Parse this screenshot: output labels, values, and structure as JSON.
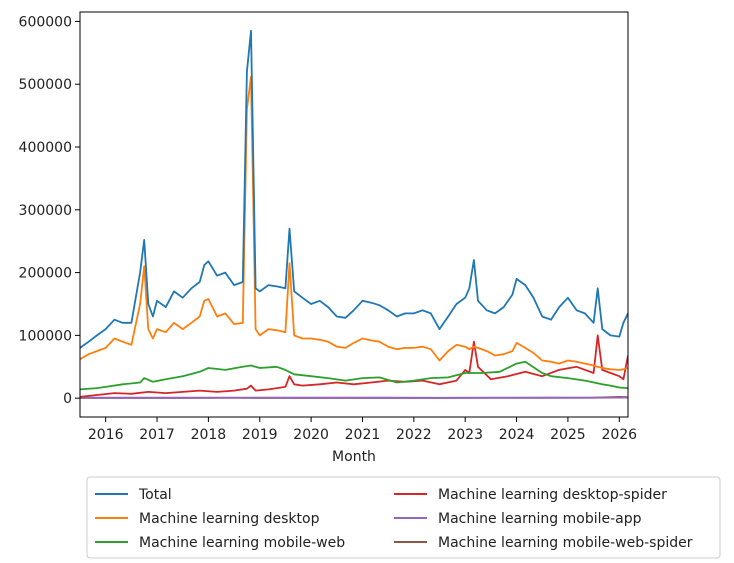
{
  "chart_data": {
    "type": "line",
    "title": "",
    "xlabel": "Month",
    "ylabel": "",
    "xlim": [
      2015.5,
      2026.17
    ],
    "ylim": [
      -30000,
      615000
    ],
    "grid": false,
    "legend_position": "bottom-center",
    "x_ticks": [
      2016,
      2017,
      2018,
      2019,
      2020,
      2021,
      2022,
      2023,
      2024,
      2025,
      2026
    ],
    "x_tick_labels": [
      "2016",
      "2017",
      "2018",
      "2019",
      "2020",
      "2021",
      "2022",
      "2023",
      "2024",
      "2025",
      "2026"
    ],
    "y_ticks": [
      0,
      100000,
      200000,
      300000,
      400000,
      500000,
      600000
    ],
    "y_tick_labels": [
      "0",
      "100000",
      "200000",
      "300000",
      "400000",
      "500000",
      "600000"
    ],
    "series": [
      {
        "name": "Total",
        "color": "#1f77b4",
        "points": [
          [
            2015.5,
            80000
          ],
          [
            2015.67,
            90000
          ],
          [
            2015.83,
            100000
          ],
          [
            2016.0,
            110000
          ],
          [
            2016.17,
            125000
          ],
          [
            2016.33,
            120000
          ],
          [
            2016.5,
            120000
          ],
          [
            2016.67,
            200000
          ],
          [
            2016.75,
            252000
          ],
          [
            2016.83,
            150000
          ],
          [
            2016.92,
            130000
          ],
          [
            2017.0,
            155000
          ],
          [
            2017.17,
            145000
          ],
          [
            2017.33,
            170000
          ],
          [
            2017.5,
            160000
          ],
          [
            2017.67,
            175000
          ],
          [
            2017.83,
            185000
          ],
          [
            2017.92,
            212000
          ],
          [
            2018.0,
            218000
          ],
          [
            2018.17,
            195000
          ],
          [
            2018.33,
            200000
          ],
          [
            2018.5,
            180000
          ],
          [
            2018.67,
            185000
          ],
          [
            2018.75,
            520000
          ],
          [
            2018.83,
            585000
          ],
          [
            2018.92,
            175000
          ],
          [
            2019.0,
            170000
          ],
          [
            2019.17,
            180000
          ],
          [
            2019.33,
            178000
          ],
          [
            2019.5,
            175000
          ],
          [
            2019.58,
            270000
          ],
          [
            2019.67,
            170000
          ],
          [
            2019.83,
            160000
          ],
          [
            2020.0,
            150000
          ],
          [
            2020.17,
            155000
          ],
          [
            2020.33,
            145000
          ],
          [
            2020.5,
            130000
          ],
          [
            2020.67,
            128000
          ],
          [
            2020.83,
            140000
          ],
          [
            2021.0,
            155000
          ],
          [
            2021.17,
            152000
          ],
          [
            2021.33,
            148000
          ],
          [
            2021.5,
            140000
          ],
          [
            2021.67,
            130000
          ],
          [
            2021.83,
            135000
          ],
          [
            2022.0,
            135000
          ],
          [
            2022.17,
            140000
          ],
          [
            2022.33,
            135000
          ],
          [
            2022.5,
            110000
          ],
          [
            2022.67,
            130000
          ],
          [
            2022.83,
            150000
          ],
          [
            2023.0,
            160000
          ],
          [
            2023.08,
            175000
          ],
          [
            2023.17,
            220000
          ],
          [
            2023.25,
            155000
          ],
          [
            2023.42,
            140000
          ],
          [
            2023.58,
            135000
          ],
          [
            2023.75,
            145000
          ],
          [
            2023.92,
            165000
          ],
          [
            2024.0,
            190000
          ],
          [
            2024.17,
            180000
          ],
          [
            2024.33,
            160000
          ],
          [
            2024.5,
            130000
          ],
          [
            2024.67,
            125000
          ],
          [
            2024.83,
            145000
          ],
          [
            2025.0,
            160000
          ],
          [
            2025.17,
            140000
          ],
          [
            2025.33,
            135000
          ],
          [
            2025.5,
            120000
          ],
          [
            2025.58,
            175000
          ],
          [
            2025.67,
            110000
          ],
          [
            2025.83,
            100000
          ],
          [
            2026.0,
            98000
          ],
          [
            2026.08,
            120000
          ],
          [
            2026.17,
            135000
          ]
        ]
      },
      {
        "name": "Machine learning desktop",
        "color": "#ff7f0e",
        "points": [
          [
            2015.5,
            62000
          ],
          [
            2015.67,
            70000
          ],
          [
            2015.83,
            75000
          ],
          [
            2016.0,
            80000
          ],
          [
            2016.17,
            95000
          ],
          [
            2016.33,
            90000
          ],
          [
            2016.5,
            85000
          ],
          [
            2016.67,
            150000
          ],
          [
            2016.75,
            210000
          ],
          [
            2016.83,
            110000
          ],
          [
            2016.92,
            95000
          ],
          [
            2017.0,
            110000
          ],
          [
            2017.17,
            105000
          ],
          [
            2017.33,
            120000
          ],
          [
            2017.5,
            110000
          ],
          [
            2017.67,
            120000
          ],
          [
            2017.83,
            130000
          ],
          [
            2017.92,
            155000
          ],
          [
            2018.0,
            158000
          ],
          [
            2018.17,
            130000
          ],
          [
            2018.33,
            135000
          ],
          [
            2018.5,
            118000
          ],
          [
            2018.67,
            120000
          ],
          [
            2018.75,
            460000
          ],
          [
            2018.83,
            512000
          ],
          [
            2018.92,
            110000
          ],
          [
            2019.0,
            100000
          ],
          [
            2019.17,
            110000
          ],
          [
            2019.33,
            108000
          ],
          [
            2019.5,
            105000
          ],
          [
            2019.58,
            215000
          ],
          [
            2019.67,
            100000
          ],
          [
            2019.83,
            95000
          ],
          [
            2020.0,
            95000
          ],
          [
            2020.17,
            93000
          ],
          [
            2020.33,
            90000
          ],
          [
            2020.5,
            82000
          ],
          [
            2020.67,
            80000
          ],
          [
            2020.83,
            88000
          ],
          [
            2021.0,
            95000
          ],
          [
            2021.17,
            92000
          ],
          [
            2021.33,
            90000
          ],
          [
            2021.5,
            82000
          ],
          [
            2021.67,
            78000
          ],
          [
            2021.83,
            80000
          ],
          [
            2022.0,
            80000
          ],
          [
            2022.17,
            82000
          ],
          [
            2022.33,
            78000
          ],
          [
            2022.5,
            60000
          ],
          [
            2022.67,
            75000
          ],
          [
            2022.83,
            85000
          ],
          [
            2023.0,
            82000
          ],
          [
            2023.08,
            78000
          ],
          [
            2023.17,
            82000
          ],
          [
            2023.25,
            80000
          ],
          [
            2023.42,
            75000
          ],
          [
            2023.58,
            68000
          ],
          [
            2023.75,
            70000
          ],
          [
            2023.92,
            75000
          ],
          [
            2024.0,
            88000
          ],
          [
            2024.17,
            80000
          ],
          [
            2024.33,
            72000
          ],
          [
            2024.5,
            60000
          ],
          [
            2024.67,
            58000
          ],
          [
            2024.83,
            55000
          ],
          [
            2025.0,
            60000
          ],
          [
            2025.17,
            58000
          ],
          [
            2025.33,
            55000
          ],
          [
            2025.5,
            52000
          ],
          [
            2025.58,
            50000
          ],
          [
            2025.67,
            48000
          ],
          [
            2025.83,
            46000
          ],
          [
            2026.0,
            45000
          ],
          [
            2026.08,
            46000
          ],
          [
            2026.17,
            48000
          ]
        ]
      },
      {
        "name": "Machine learning mobile-web",
        "color": "#2ca02c",
        "points": [
          [
            2015.5,
            14000
          ],
          [
            2015.83,
            16000
          ],
          [
            2016.0,
            18000
          ],
          [
            2016.33,
            22000
          ],
          [
            2016.67,
            25000
          ],
          [
            2016.75,
            32000
          ],
          [
            2016.92,
            26000
          ],
          [
            2017.17,
            30000
          ],
          [
            2017.5,
            35000
          ],
          [
            2017.83,
            42000
          ],
          [
            2018.0,
            48000
          ],
          [
            2018.33,
            45000
          ],
          [
            2018.67,
            50000
          ],
          [
            2018.83,
            52000
          ],
          [
            2019.0,
            48000
          ],
          [
            2019.33,
            50000
          ],
          [
            2019.5,
            45000
          ],
          [
            2019.67,
            38000
          ],
          [
            2020.0,
            35000
          ],
          [
            2020.33,
            32000
          ],
          [
            2020.67,
            28000
          ],
          [
            2021.0,
            32000
          ],
          [
            2021.33,
            33000
          ],
          [
            2021.67,
            25000
          ],
          [
            2022.0,
            28000
          ],
          [
            2022.33,
            32000
          ],
          [
            2022.67,
            33000
          ],
          [
            2023.0,
            40000
          ],
          [
            2023.33,
            40000
          ],
          [
            2023.67,
            42000
          ],
          [
            2024.0,
            55000
          ],
          [
            2024.17,
            58000
          ],
          [
            2024.5,
            40000
          ],
          [
            2024.67,
            35000
          ],
          [
            2025.0,
            32000
          ],
          [
            2025.33,
            28000
          ],
          [
            2025.67,
            22000
          ],
          [
            2025.83,
            20000
          ],
          [
            2026.0,
            17000
          ],
          [
            2026.17,
            16000
          ]
        ]
      },
      {
        "name": "Machine learning desktop-spider",
        "color": "#d62728",
        "points": [
          [
            2015.5,
            2000
          ],
          [
            2015.83,
            5000
          ],
          [
            2016.17,
            8000
          ],
          [
            2016.5,
            7000
          ],
          [
            2016.83,
            10000
          ],
          [
            2017.17,
            8000
          ],
          [
            2017.5,
            10000
          ],
          [
            2017.83,
            12000
          ],
          [
            2018.17,
            10000
          ],
          [
            2018.5,
            12000
          ],
          [
            2018.75,
            15000
          ],
          [
            2018.83,
            20000
          ],
          [
            2018.92,
            12000
          ],
          [
            2019.17,
            14000
          ],
          [
            2019.5,
            18000
          ],
          [
            2019.58,
            35000
          ],
          [
            2019.67,
            22000
          ],
          [
            2019.83,
            20000
          ],
          [
            2020.17,
            22000
          ],
          [
            2020.5,
            25000
          ],
          [
            2020.83,
            22000
          ],
          [
            2021.17,
            25000
          ],
          [
            2021.5,
            28000
          ],
          [
            2021.83,
            26000
          ],
          [
            2022.17,
            28000
          ],
          [
            2022.5,
            22000
          ],
          [
            2022.83,
            28000
          ],
          [
            2023.0,
            45000
          ],
          [
            2023.08,
            40000
          ],
          [
            2023.17,
            90000
          ],
          [
            2023.25,
            50000
          ],
          [
            2023.5,
            30000
          ],
          [
            2023.83,
            35000
          ],
          [
            2024.17,
            42000
          ],
          [
            2024.5,
            35000
          ],
          [
            2024.83,
            45000
          ],
          [
            2025.17,
            50000
          ],
          [
            2025.5,
            40000
          ],
          [
            2025.58,
            100000
          ],
          [
            2025.67,
            45000
          ],
          [
            2025.83,
            40000
          ],
          [
            2026.0,
            35000
          ],
          [
            2026.08,
            30000
          ],
          [
            2026.17,
            68000
          ]
        ]
      },
      {
        "name": "Machine learning mobile-app",
        "color": "#9467bd",
        "points": [
          [
            2015.5,
            800
          ],
          [
            2016.5,
            900
          ],
          [
            2017.5,
            800
          ],
          [
            2018.5,
            900
          ],
          [
            2019.5,
            800
          ],
          [
            2020.5,
            700
          ],
          [
            2021.5,
            700
          ],
          [
            2022.5,
            600
          ],
          [
            2023.5,
            700
          ],
          [
            2024.5,
            800
          ],
          [
            2025.5,
            800
          ],
          [
            2026.17,
            900
          ]
        ]
      },
      {
        "name": "Machine learning mobile-web-spider",
        "color": "#8c564b",
        "points": [
          [
            2015.5,
            200
          ],
          [
            2016.5,
            300
          ],
          [
            2017.5,
            300
          ],
          [
            2018.5,
            400
          ],
          [
            2019.5,
            300
          ],
          [
            2020.5,
            300
          ],
          [
            2021.5,
            300
          ],
          [
            2022.5,
            300
          ],
          [
            2023.5,
            400
          ],
          [
            2024.5,
            500
          ],
          [
            2025.5,
            800
          ],
          [
            2026.0,
            2000
          ],
          [
            2026.17,
            1500
          ]
        ]
      }
    ]
  }
}
